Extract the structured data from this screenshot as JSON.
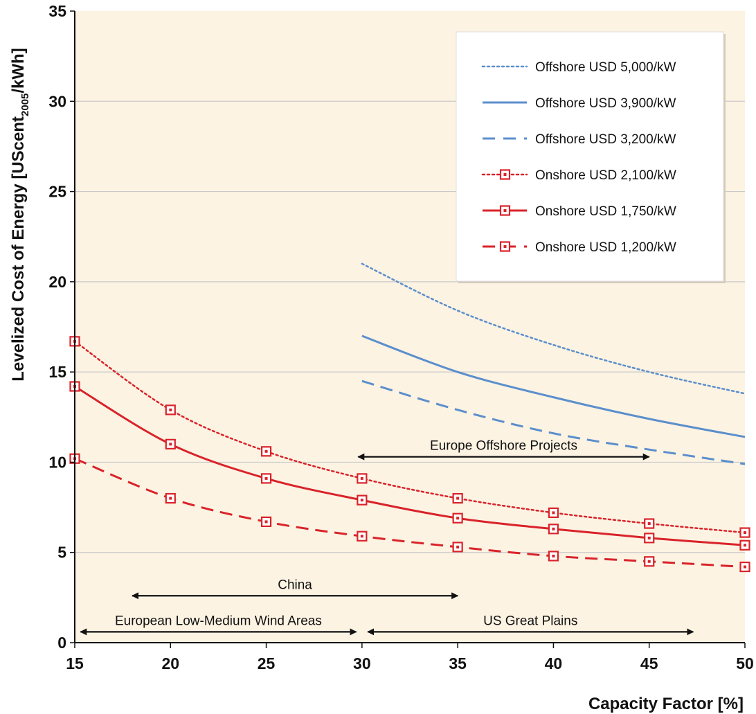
{
  "chart_data": {
    "type": "line",
    "xlabel": "Capacity Factor [%]",
    "ylabel": {
      "prefix": "Levelized Cost of Energy [UScent",
      "sub": "2005",
      "suffix": "/kWh]"
    },
    "xlim": [
      15,
      50
    ],
    "ylim": [
      0,
      35
    ],
    "xticks": [
      15,
      20,
      25,
      30,
      35,
      40,
      45,
      50
    ],
    "yticks": [
      0,
      5,
      10,
      15,
      20,
      25,
      30,
      35
    ],
    "grid": "horizontal",
    "legend_position": "top-right",
    "background_color": "#fdf3e3",
    "series": [
      {
        "name": "Offshore USD 5,000/kW",
        "color": "#5b8fcc",
        "style": "dotted",
        "markers": false,
        "x": [
          30,
          35,
          40,
          45,
          50
        ],
        "y": [
          21.0,
          18.4,
          16.5,
          15.0,
          13.8
        ]
      },
      {
        "name": "Offshore USD 3,900/kW",
        "color": "#5b8fcc",
        "style": "solid",
        "markers": false,
        "x": [
          30,
          35,
          40,
          45,
          50
        ],
        "y": [
          17.0,
          15.0,
          13.6,
          12.4,
          11.4
        ]
      },
      {
        "name": "Offshore USD 3,200/kW",
        "color": "#5b8fcc",
        "style": "dashed",
        "markers": false,
        "x": [
          30,
          35,
          40,
          45,
          50
        ],
        "y": [
          14.5,
          12.9,
          11.6,
          10.7,
          9.9
        ]
      },
      {
        "name": "Onshore USD 2,100/kW",
        "color": "#d9232a",
        "style": "dotted",
        "markers": true,
        "x": [
          15,
          20,
          25,
          30,
          35,
          40,
          45,
          50
        ],
        "y": [
          16.7,
          12.9,
          10.6,
          9.1,
          8.0,
          7.2,
          6.6,
          6.1
        ]
      },
      {
        "name": "Onshore USD 1,750/kW",
        "color": "#d9232a",
        "style": "solid",
        "markers": true,
        "x": [
          15,
          20,
          25,
          30,
          35,
          40,
          45,
          50
        ],
        "y": [
          14.2,
          11.0,
          9.1,
          7.9,
          6.9,
          6.3,
          5.8,
          5.4
        ]
      },
      {
        "name": "Onshore USD 1,200/kW",
        "color": "#d9232a",
        "style": "dashed",
        "markers": true,
        "x": [
          15,
          20,
          25,
          30,
          35,
          40,
          45,
          50
        ],
        "y": [
          10.2,
          8.0,
          6.7,
          5.9,
          5.3,
          4.8,
          4.5,
          4.2
        ]
      }
    ],
    "annotations": [
      {
        "label": "Europe Offshore Projects",
        "x_start": 29.8,
        "x_end": 45.0,
        "y": 10.3
      },
      {
        "label": "China",
        "x_start": 18.0,
        "x_end": 35.0,
        "y": 2.6
      },
      {
        "label": "European Low-Medium Wind Areas",
        "x_start": 15.3,
        "x_end": 29.7,
        "y": 0.6
      },
      {
        "label": "US Great Plains",
        "x_start": 30.3,
        "x_end": 47.3,
        "y": 0.6
      }
    ]
  }
}
